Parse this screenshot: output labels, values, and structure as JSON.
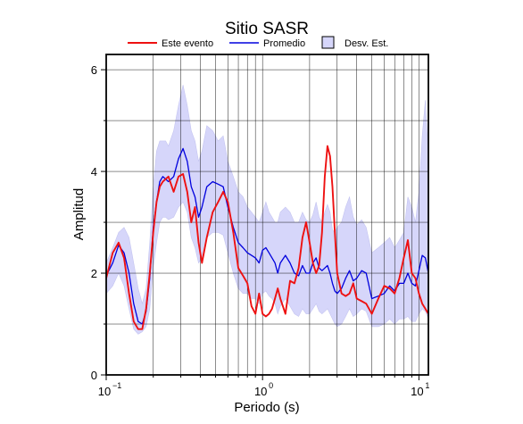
{
  "chart_data": {
    "type": "line",
    "title": "Sitio SASR",
    "xlabel": "Periodo (s)",
    "ylabel": "Amplitud",
    "xscale": "log",
    "xlim": [
      0.1,
      11.5
    ],
    "ylim": [
      0,
      6.3
    ],
    "grid": true,
    "legend_position": "top-center",
    "yticks": [
      0,
      2,
      4,
      6
    ],
    "ytick_labels": [
      "0",
      "2",
      "4",
      "6"
    ],
    "xticks": [
      0.1,
      1,
      10
    ],
    "xtick_labels": [
      {
        "base": "10",
        "exp": "−1"
      },
      {
        "base": "10",
        "exp": "0"
      },
      {
        "base": "10",
        "exp": "1"
      }
    ],
    "legend": {
      "event_label": "Este evento",
      "mean_label": "Promedio",
      "std_label": "Desv. Est."
    },
    "colors": {
      "event": "#ee1111",
      "mean": "#0000dd",
      "std_fill": "#d6d6fa",
      "std_edge": "#c4c4f0",
      "grid": "#000000"
    },
    "series": [
      {
        "name": "Este evento",
        "x": [
          0.1,
          0.11,
          0.12,
          0.13,
          0.14,
          0.15,
          0.16,
          0.17,
          0.18,
          0.19,
          0.2,
          0.21,
          0.22,
          0.23,
          0.24,
          0.25,
          0.27,
          0.29,
          0.31,
          0.33,
          0.35,
          0.37,
          0.39,
          0.41,
          0.44,
          0.48,
          0.52,
          0.56,
          0.6,
          0.65,
          0.7,
          0.75,
          0.8,
          0.85,
          0.9,
          0.95,
          1.0,
          1.05,
          1.1,
          1.15,
          1.2,
          1.25,
          1.3,
          1.4,
          1.5,
          1.6,
          1.7,
          1.8,
          1.9,
          2.0,
          2.1,
          2.2,
          2.3,
          2.4,
          2.5,
          2.6,
          2.7,
          2.8,
          2.9,
          3.0,
          3.2,
          3.4,
          3.6,
          3.8,
          4.0,
          4.3,
          4.6,
          5.0,
          5.5,
          6.0,
          6.5,
          7.0,
          7.5,
          8.0,
          8.5,
          9.0,
          9.5,
          10.0,
          10.5,
          11.0,
          11.5
        ],
        "y": [
          1.9,
          2.4,
          2.6,
          2.3,
          1.6,
          1.05,
          0.9,
          0.9,
          1.3,
          2.0,
          2.8,
          3.4,
          3.7,
          3.8,
          3.85,
          3.9,
          3.6,
          3.9,
          3.95,
          3.6,
          3.0,
          3.3,
          2.6,
          2.2,
          2.7,
          3.2,
          3.4,
          3.6,
          3.4,
          2.8,
          2.1,
          1.95,
          1.8,
          1.35,
          1.2,
          1.6,
          1.2,
          1.15,
          1.2,
          1.3,
          1.5,
          1.7,
          1.5,
          1.2,
          1.85,
          1.8,
          2.1,
          2.7,
          3.0,
          2.6,
          2.2,
          2.0,
          2.15,
          2.8,
          3.9,
          4.5,
          4.3,
          3.7,
          2.8,
          2.0,
          1.6,
          1.55,
          1.6,
          1.8,
          1.5,
          1.45,
          1.4,
          1.2,
          1.5,
          1.75,
          1.7,
          1.6,
          1.9,
          2.3,
          2.65,
          2.0,
          1.9,
          1.6,
          1.4,
          1.3,
          1.2
        ]
      },
      {
        "name": "Promedio",
        "x": [
          0.1,
          0.11,
          0.12,
          0.13,
          0.14,
          0.15,
          0.16,
          0.17,
          0.18,
          0.19,
          0.2,
          0.21,
          0.22,
          0.23,
          0.24,
          0.25,
          0.27,
          0.29,
          0.31,
          0.33,
          0.35,
          0.37,
          0.39,
          0.41,
          0.44,
          0.48,
          0.52,
          0.56,
          0.6,
          0.65,
          0.7,
          0.75,
          0.8,
          0.85,
          0.9,
          0.95,
          1.0,
          1.05,
          1.1,
          1.15,
          1.2,
          1.25,
          1.3,
          1.4,
          1.5,
          1.6,
          1.7,
          1.8,
          1.9,
          2.0,
          2.1,
          2.2,
          2.3,
          2.4,
          2.5,
          2.6,
          2.7,
          2.8,
          2.9,
          3.0,
          3.2,
          3.4,
          3.6,
          3.8,
          4.0,
          4.3,
          4.6,
          5.0,
          5.5,
          6.0,
          6.5,
          7.0,
          7.5,
          8.0,
          8.5,
          9.0,
          9.5,
          10.0,
          10.5,
          11.0,
          11.5
        ],
        "y": [
          1.95,
          2.2,
          2.55,
          2.4,
          2.0,
          1.4,
          1.05,
          1.0,
          1.25,
          1.9,
          2.9,
          3.4,
          3.8,
          3.9,
          3.85,
          3.8,
          3.9,
          4.25,
          4.45,
          4.2,
          3.7,
          3.5,
          3.1,
          3.3,
          3.7,
          3.8,
          3.75,
          3.7,
          3.3,
          2.9,
          2.6,
          2.5,
          2.4,
          2.35,
          2.3,
          2.2,
          2.45,
          2.5,
          2.4,
          2.3,
          2.2,
          2.0,
          2.2,
          2.35,
          2.2,
          2.0,
          1.95,
          2.15,
          2.0,
          2.0,
          2.2,
          2.3,
          2.1,
          2.05,
          2.1,
          2.15,
          2.0,
          1.8,
          1.65,
          1.6,
          1.7,
          1.9,
          2.05,
          1.85,
          1.9,
          2.05,
          2.0,
          1.5,
          1.55,
          1.6,
          1.75,
          1.65,
          1.8,
          1.8,
          2.0,
          1.8,
          1.75,
          2.05,
          2.35,
          2.3,
          2.0
        ]
      },
      {
        "name": "Desv. Est.",
        "x": [
          0.1,
          0.11,
          0.12,
          0.13,
          0.14,
          0.15,
          0.16,
          0.17,
          0.18,
          0.19,
          0.2,
          0.21,
          0.22,
          0.23,
          0.24,
          0.25,
          0.27,
          0.29,
          0.31,
          0.33,
          0.35,
          0.37,
          0.39,
          0.41,
          0.44,
          0.48,
          0.52,
          0.56,
          0.6,
          0.65,
          0.7,
          0.75,
          0.8,
          0.85,
          0.9,
          0.95,
          1.0,
          1.05,
          1.1,
          1.15,
          1.2,
          1.25,
          1.3,
          1.4,
          1.5,
          1.6,
          1.7,
          1.8,
          1.9,
          2.0,
          2.1,
          2.2,
          2.3,
          2.4,
          2.5,
          2.6,
          2.7,
          2.8,
          2.9,
          3.0,
          3.2,
          3.4,
          3.6,
          3.8,
          4.0,
          4.3,
          4.6,
          5.0,
          5.5,
          6.0,
          6.5,
          7.0,
          7.5,
          8.0,
          8.5,
          9.0,
          9.5,
          10.0,
          10.5,
          11.0,
          11.5
        ],
        "upper": [
          2.2,
          2.5,
          2.8,
          2.9,
          2.7,
          2.2,
          1.7,
          1.4,
          1.7,
          2.6,
          3.7,
          4.4,
          4.6,
          4.6,
          4.6,
          4.5,
          4.8,
          5.3,
          5.7,
          5.3,
          4.8,
          4.6,
          4.2,
          4.4,
          4.9,
          4.8,
          4.6,
          4.7,
          4.2,
          3.9,
          3.6,
          3.5,
          3.3,
          3.2,
          3.1,
          3.0,
          3.2,
          3.4,
          3.2,
          3.1,
          3.0,
          3.0,
          3.2,
          3.3,
          3.2,
          3.0,
          3.0,
          3.2,
          3.05,
          3.0,
          3.15,
          3.4,
          3.1,
          3.0,
          3.2,
          3.35,
          3.2,
          2.85,
          2.8,
          2.9,
          3.0,
          3.3,
          3.5,
          3.1,
          2.95,
          3.05,
          2.9,
          2.4,
          2.5,
          2.6,
          2.7,
          2.5,
          2.65,
          2.8,
          3.5,
          3.3,
          3.0,
          3.6,
          4.7,
          5.4,
          4.3
        ],
        "lower": [
          1.6,
          1.75,
          2.0,
          1.75,
          1.3,
          0.9,
          0.8,
          0.85,
          0.95,
          1.3,
          2.1,
          2.6,
          3.0,
          3.1,
          3.1,
          3.05,
          3.1,
          3.3,
          3.4,
          3.2,
          2.7,
          2.5,
          2.2,
          2.3,
          2.7,
          2.8,
          2.8,
          2.75,
          2.4,
          2.0,
          1.7,
          1.6,
          1.6,
          1.5,
          1.5,
          1.4,
          1.6,
          1.65,
          1.55,
          1.5,
          1.4,
          1.2,
          1.35,
          1.5,
          1.35,
          1.2,
          1.15,
          1.3,
          1.2,
          1.2,
          1.3,
          1.4,
          1.25,
          1.2,
          1.25,
          1.3,
          1.2,
          1.1,
          1.0,
          0.95,
          1.0,
          1.15,
          1.3,
          1.15,
          1.2,
          1.3,
          1.25,
          0.95,
          0.95,
          1.0,
          1.1,
          1.0,
          1.1,
          1.1,
          1.15,
          1.05,
          1.05,
          1.2,
          1.3,
          1.25,
          1.1
        ]
      }
    ]
  }
}
